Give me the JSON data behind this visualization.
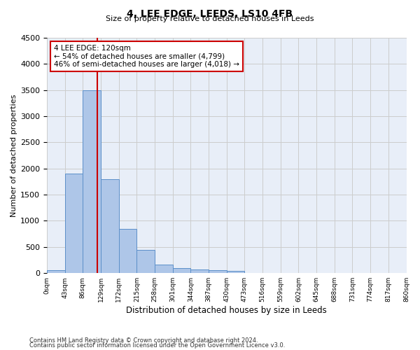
{
  "title": "4, LEE EDGE, LEEDS, LS10 4FB",
  "subtitle": "Size of property relative to detached houses in Leeds",
  "xlabel": "Distribution of detached houses by size in Leeds",
  "ylabel": "Number of detached properties",
  "footer_line1": "Contains HM Land Registry data © Crown copyright and database right 2024.",
  "footer_line2": "Contains public sector information licensed under the Open Government Licence v3.0.",
  "bar_values": [
    50,
    1900,
    3500,
    1800,
    850,
    450,
    160,
    100,
    70,
    55,
    40,
    0,
    0,
    0,
    0,
    0,
    0,
    0,
    0,
    0
  ],
  "bin_labels": [
    "0sqm",
    "43sqm",
    "86sqm",
    "129sqm",
    "172sqm",
    "215sqm",
    "258sqm",
    "301sqm",
    "344sqm",
    "387sqm",
    "430sqm",
    "473sqm",
    "516sqm",
    "559sqm",
    "602sqm",
    "645sqm",
    "688sqm",
    "731sqm",
    "774sqm",
    "817sqm",
    "860sqm"
  ],
  "bar_color": "#aec6e8",
  "bar_edge_color": "#5b8fc9",
  "grid_color": "#cccccc",
  "bg_color": "#e8eef8",
  "vline_color": "#cc0000",
  "annotation_text_line1": "4 LEE EDGE: 120sqm",
  "annotation_text_line2": "← 54% of detached houses are smaller (4,799)",
  "annotation_text_line3": "46% of semi-detached houses are larger (4,018) →",
  "annotation_box_color": "#cc0000",
  "ylim": [
    0,
    4500
  ],
  "yticks": [
    0,
    500,
    1000,
    1500,
    2000,
    2500,
    3000,
    3500,
    4000,
    4500
  ]
}
